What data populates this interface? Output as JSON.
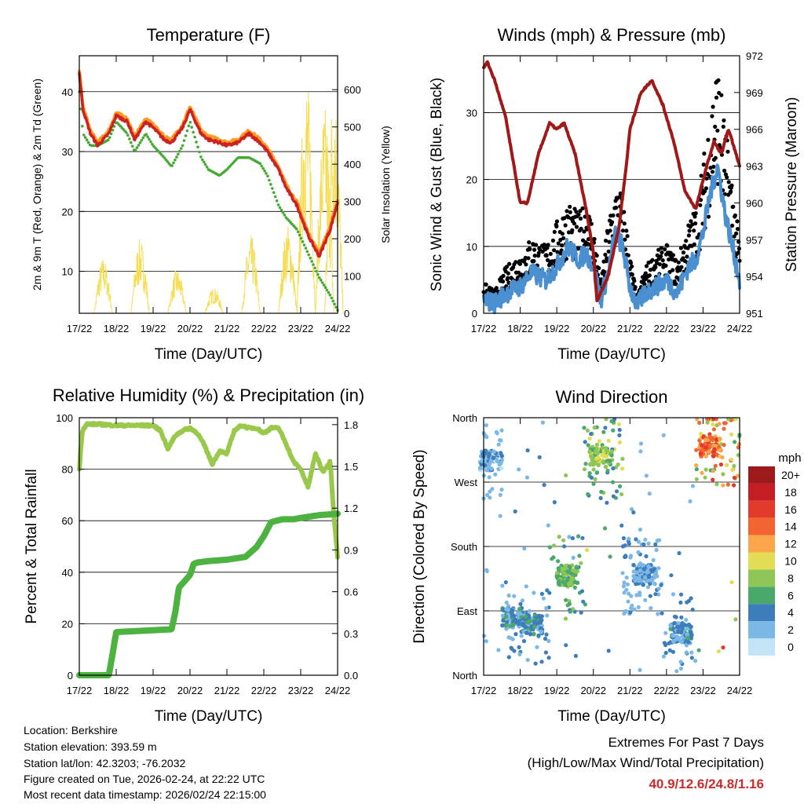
{
  "chart_data": [
    {
      "type": "line",
      "title": "Temperature (F)",
      "xlabel": "Time (Day/UTC)",
      "ylabel": "2m & 9m T (Red, Orange) & 2m Td (Green)",
      "y2label": "Solar Insolation (Yellow)",
      "xticks": [
        "17/22",
        "18/22",
        "19/22",
        "20/22",
        "21/22",
        "22/22",
        "23/22",
        "24/22"
      ],
      "ylim": [
        3,
        46
      ],
      "yticks": [
        10,
        20,
        30,
        40
      ],
      "y2lim": [
        0,
        691
      ],
      "y2ticks": [
        0,
        100,
        200,
        300,
        400,
        500,
        600
      ],
      "series": [
        {
          "name": "2m T",
          "color": "#cc2222",
          "x": [
            0,
            0.1,
            0.3,
            0.5,
            0.8,
            1,
            1.3,
            1.5,
            1.8,
            2,
            2.3,
            2.5,
            2.8,
            3,
            3.3,
            3.5,
            3.8,
            4,
            4.3,
            4.6,
            4.9,
            5.1,
            5.4,
            5.6,
            5.9,
            6.2,
            6.5,
            6.8,
            7
          ],
          "y": [
            43,
            37,
            33,
            31,
            33,
            36,
            35,
            32,
            35,
            34,
            32,
            31.5,
            34,
            37,
            33,
            32,
            31.5,
            31,
            31.5,
            33,
            31.5,
            30,
            27,
            24,
            21,
            16,
            12.5,
            17,
            21.5
          ]
        },
        {
          "name": "9m T",
          "color": "#ff9922",
          "x": [
            0,
            0.1,
            0.3,
            0.5,
            0.8,
            1,
            1.3,
            1.5,
            1.8,
            2,
            2.3,
            2.5,
            2.8,
            3,
            3.3,
            3.5,
            3.8,
            4,
            4.3,
            4.6,
            4.9,
            5.1,
            5.4,
            5.6,
            5.9,
            6.2,
            6.5,
            6.8,
            7
          ],
          "y": [
            43.5,
            37.5,
            33.5,
            31.5,
            33.5,
            36.5,
            35.5,
            32.5,
            35.5,
            34.5,
            32.5,
            32,
            34.5,
            37.5,
            33.5,
            32.5,
            32,
            31.5,
            32,
            33.5,
            32,
            30.5,
            27.5,
            24.5,
            21.5,
            16.5,
            13,
            17.5,
            22
          ]
        },
        {
          "name": "2m Td",
          "color": "#44aa33",
          "x": [
            0,
            0.1,
            0.3,
            0.5,
            0.8,
            1,
            1.3,
            1.5,
            1.8,
            2,
            2.3,
            2.5,
            2.8,
            3,
            3.3,
            3.5,
            3.8,
            4,
            4.3,
            4.6,
            4.9,
            5.1,
            5.4,
            5.6,
            5.9,
            6.2,
            6.5,
            6.8,
            7
          ],
          "y": [
            40,
            33,
            31,
            31,
            32,
            35,
            33,
            30,
            33,
            31,
            29,
            27.5,
            31,
            35,
            29,
            27,
            26,
            27,
            29,
            29,
            28,
            26,
            21,
            19,
            17,
            13,
            9,
            6,
            3.5
          ]
        },
        {
          "name": "Solar Insolation",
          "color": "#f5dd55",
          "axis": "y2",
          "days": [
            0.65,
            1.65,
            2.65,
            3.65,
            4.65,
            5.65,
            6.15,
            6.65,
            6.9
          ],
          "peaks": [
            150,
            200,
            120,
            70,
            210,
            240,
            650,
            560,
            620
          ]
        }
      ]
    },
    {
      "type": "line",
      "title": "Winds (mph) & Pressure (mb)",
      "xlabel": "Time (Day/UTC)",
      "ylabel": "Sonic Wind & Gust (Blue, Black)",
      "y2label": "Station Pressure (Maroon)",
      "xticks": [
        "17/22",
        "18/22",
        "19/22",
        "20/22",
        "21/22",
        "22/22",
        "23/22",
        "24/22"
      ],
      "ylim": [
        0,
        38.5
      ],
      "yticks": [
        0,
        10,
        20,
        30
      ],
      "y2lim": [
        951,
        972
      ],
      "y2ticks": [
        951,
        954,
        957,
        960,
        963,
        966,
        969,
        972
      ],
      "series": [
        {
          "name": "Pressure",
          "color": "#a01818",
          "axis": "y2",
          "x": [
            0,
            0.1,
            0.3,
            0.6,
            1,
            1.2,
            1.5,
            1.8,
            2,
            2.2,
            2.5,
            2.8,
            3,
            3.1,
            3.4,
            3.7,
            3.9,
            4,
            4.3,
            4.6,
            4.9,
            5.2,
            5.5,
            5.8,
            6.1,
            6.3,
            6.5,
            6.7,
            6.9,
            7
          ],
          "y": [
            971,
            971.5,
            970,
            967,
            960,
            960,
            964,
            966.5,
            966,
            966.5,
            964,
            959.5,
            956,
            952,
            954,
            958,
            963,
            966,
            969,
            970,
            968,
            965,
            961,
            959.5,
            963,
            965,
            964,
            966,
            964,
            963
          ]
        },
        {
          "name": "Wind",
          "color": "#4a90d0",
          "x": [
            0,
            0.3,
            0.6,
            1,
            1.3,
            1.7,
            2,
            2.3,
            2.6,
            2.8,
            3,
            3.2,
            3.4,
            3.6,
            3.8,
            4,
            4.2,
            4.4,
            4.7,
            5,
            5.3,
            5.6,
            5.8,
            6,
            6.2,
            6.4,
            6.6,
            6.8,
            7
          ],
          "y": [
            2,
            1.5,
            3,
            4,
            6,
            5,
            7,
            10,
            8,
            9,
            7,
            2,
            6,
            12,
            10,
            4,
            1,
            3,
            4,
            5,
            3,
            7,
            8,
            12,
            18,
            22,
            15,
            10,
            5
          ]
        },
        {
          "name": "Gust",
          "color": "#000000",
          "x": [
            0,
            0.3,
            0.6,
            1,
            1.3,
            1.7,
            2,
            2.3,
            2.6,
            2.8,
            3,
            3.2,
            3.4,
            3.6,
            3.8,
            4,
            4.2,
            4.4,
            4.7,
            5,
            5.3,
            5.6,
            5.8,
            6,
            6.2,
            6.4,
            6.6,
            6.8,
            7
          ],
          "y": [
            4,
            3,
            6,
            8,
            10,
            9,
            12,
            15,
            13,
            15,
            12,
            4,
            12,
            17,
            16,
            8,
            2,
            6,
            8,
            9,
            7,
            12,
            14,
            20,
            28,
            34,
            25,
            18,
            9
          ]
        }
      ]
    },
    {
      "type": "line",
      "title": "Relative Humidity (%) & Precipitation (in)",
      "xlabel": "Time (Day/UTC)",
      "ylabel": "Percent & Total Rainfall",
      "xticks": [
        "17/22",
        "18/22",
        "19/22",
        "20/22",
        "21/22",
        "22/22",
        "23/22",
        "24/22"
      ],
      "ylim": [
        0,
        100
      ],
      "yticks": [
        0,
        20,
        40,
        60,
        80,
        100
      ],
      "y2lim": [
        0,
        1.85
      ],
      "y2ticks": [
        0.0,
        0.3,
        0.6,
        0.9,
        1.2,
        1.5,
        1.8
      ],
      "series": [
        {
          "name": "Relative Humidity",
          "color": "#99c84a",
          "x": [
            0,
            0.08,
            0.2,
            0.5,
            1,
            1.5,
            2,
            2.2,
            2.4,
            2.6,
            2.8,
            3,
            3.2,
            3.4,
            3.6,
            3.8,
            4,
            4.2,
            4.4,
            4.6,
            4.8,
            5,
            5.2,
            5.4,
            5.6,
            5.8,
            6,
            6.2,
            6.4,
            6.6,
            6.8,
            6.9,
            7
          ],
          "y": [
            80,
            95,
            97.5,
            97.5,
            97,
            97,
            97,
            95,
            88,
            93,
            95,
            96,
            94,
            89,
            82,
            87,
            86,
            95,
            97,
            96,
            96,
            94,
            96,
            96,
            90,
            83,
            80,
            73,
            86,
            79,
            83,
            62,
            46
          ]
        },
        {
          "name": "Total Precipitation",
          "color": "#4db340",
          "axis": "y2",
          "x": [
            0,
            0.8,
            0.9,
            1,
            2.5,
            2.6,
            2.7,
            2.8,
            3,
            3.1,
            3.2,
            3.5,
            4,
            4.5,
            4.8,
            5,
            5.2,
            5.5,
            5.8,
            6,
            6.5,
            7
          ],
          "y": [
            0,
            0,
            0.15,
            0.31,
            0.33,
            0.45,
            0.63,
            0.66,
            0.72,
            0.8,
            0.81,
            0.82,
            0.83,
            0.85,
            0.92,
            1.0,
            1.1,
            1.12,
            1.12,
            1.13,
            1.15,
            1.16
          ]
        }
      ]
    },
    {
      "type": "scatter",
      "title": "Wind Direction",
      "xlabel": "Time (Day/UTC)",
      "ylabel": "Direction (Colored By Speed)",
      "xticks": [
        "17/22",
        "18/22",
        "19/22",
        "20/22",
        "21/22",
        "22/22",
        "23/22",
        "24/22"
      ],
      "yticks": [
        "North",
        "West",
        "South",
        "East",
        "North"
      ],
      "ylim": [
        0,
        360
      ],
      "legend": {
        "title": "mph",
        "labels": [
          "20+",
          "18",
          "16",
          "14",
          "12",
          "10",
          "8",
          "6",
          "4",
          "2",
          "0"
        ],
        "colors": [
          "#9c1a1c",
          "#c41e24",
          "#e33b2b",
          "#f26531",
          "#fba64a",
          "#e2dd55",
          "#8ec657",
          "#4aa86a",
          "#3c7dba",
          "#7cb8e6",
          "#c3e4f6"
        ]
      },
      "clusters": [
        {
          "x": 0.2,
          "dir": 300,
          "speed": 2.5
        },
        {
          "x": 0.8,
          "dir": 80,
          "speed": 3.5
        },
        {
          "x": 1.3,
          "dir": 70,
          "speed": 4
        },
        {
          "x": 2.3,
          "dir": 140,
          "speed": 7
        },
        {
          "x": 3.2,
          "dir": 305,
          "speed": 8
        },
        {
          "x": 4.4,
          "dir": 140,
          "speed": 3
        },
        {
          "x": 5.4,
          "dir": 60,
          "speed": 3.5
        },
        {
          "x": 6.2,
          "dir": 320,
          "speed": 14
        }
      ]
    }
  ],
  "info": {
    "location": "Location: Berkshire",
    "elevation": "Station elevation: 393.59 m",
    "latlon": "Station lat/lon: 42.3203; -76.2032",
    "created": "Figure created on Tue, 2026-02-24, at 22:22 UTC",
    "recent": "Most recent data timestamp: 2026/02/24 22:15:00"
  },
  "extremes": {
    "title1": "Extremes For Past 7 Days",
    "title2": "(High/Low/Max Wind/Total Precipitation)",
    "values": "40.9/12.6/24.8/1.16"
  }
}
